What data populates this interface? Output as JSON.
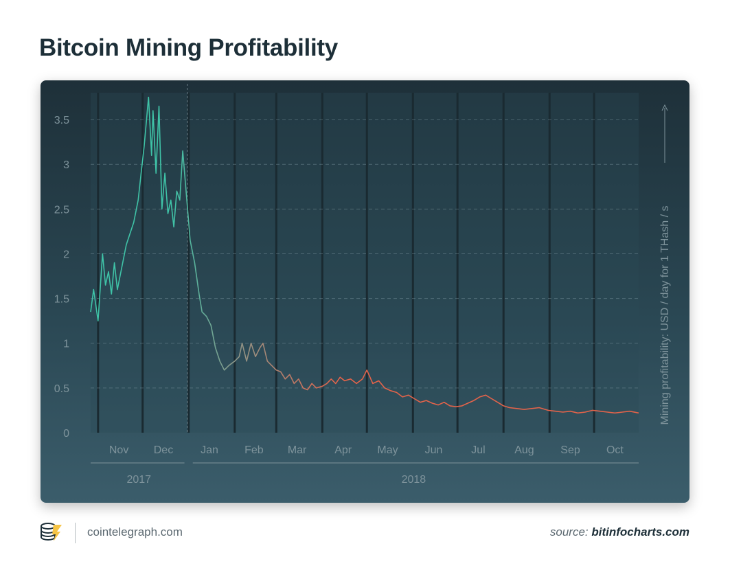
{
  "header": {
    "title": "Bitcoin Mining Profitability"
  },
  "footer": {
    "site": "cointelegraph.com",
    "source_prefix": "source: ",
    "source_name": "bitinfocharts.com"
  },
  "colors": {
    "line_start": "#3fc3a7",
    "line_mid": "#8a978a",
    "line_end": "#e4634a"
  },
  "chart_data": {
    "type": "line",
    "title": "Bitcoin Mining Profitability",
    "ylabel": "Mining profitability: USD / day for 1 THash / s",
    "ylim": [
      0,
      3.8
    ],
    "yticks": [
      0,
      0.5,
      1,
      1.5,
      2,
      2.5,
      3,
      3.5
    ],
    "ytick_labels": [
      "0",
      "0.5",
      "1",
      "1.5",
      "2",
      "2.5",
      "3",
      "3.5"
    ],
    "xlim": [
      "2017-10-27",
      "2018-10-31"
    ],
    "month_labels": [
      "Nov",
      "Dec",
      "Jan",
      "Feb",
      "Mar",
      "Apr",
      "May",
      "Jun",
      "Jul",
      "Aug",
      "Sep",
      "Oct"
    ],
    "year_labels": [
      "2017",
      "2018"
    ],
    "grid": true,
    "series": [
      {
        "x": [
          "2017-10-27",
          "2017-10-29",
          "2017-11-01",
          "2017-11-04",
          "2017-11-06",
          "2017-11-08",
          "2017-11-10",
          "2017-11-12",
          "2017-11-14",
          "2017-11-17",
          "2017-11-20",
          "2017-11-22",
          "2017-11-25",
          "2017-11-28",
          "2017-11-30",
          "2017-12-02",
          "2017-12-05",
          "2017-12-07",
          "2017-12-08",
          "2017-12-10",
          "2017-12-12",
          "2017-12-14",
          "2017-12-16",
          "2017-12-18",
          "2017-12-20",
          "2017-12-22",
          "2017-12-24",
          "2017-12-26",
          "2017-12-28",
          "2017-12-31",
          "2018-01-02",
          "2018-01-05",
          "2018-01-08",
          "2018-01-10",
          "2018-01-13",
          "2018-01-16",
          "2018-01-19",
          "2018-01-22",
          "2018-01-25",
          "2018-01-28",
          "2018-02-01",
          "2018-02-04",
          "2018-02-06",
          "2018-02-09",
          "2018-02-12",
          "2018-02-15",
          "2018-02-18",
          "2018-02-20",
          "2018-02-23",
          "2018-02-26",
          "2018-03-01",
          "2018-03-04",
          "2018-03-07",
          "2018-03-10",
          "2018-03-13",
          "2018-03-16",
          "2018-03-19",
          "2018-03-22",
          "2018-03-25",
          "2018-03-28",
          "2018-04-01",
          "2018-04-04",
          "2018-04-07",
          "2018-04-10",
          "2018-04-13",
          "2018-04-16",
          "2018-04-20",
          "2018-04-24",
          "2018-04-28",
          "2018-05-01",
          "2018-05-05",
          "2018-05-09",
          "2018-05-13",
          "2018-05-17",
          "2018-05-21",
          "2018-05-25",
          "2018-05-29",
          "2018-06-02",
          "2018-06-06",
          "2018-06-10",
          "2018-06-14",
          "2018-06-18",
          "2018-06-22",
          "2018-06-26",
          "2018-06-30",
          "2018-07-04",
          "2018-07-08",
          "2018-07-12",
          "2018-07-16",
          "2018-07-20",
          "2018-07-24",
          "2018-07-28",
          "2018-08-01",
          "2018-08-05",
          "2018-08-10",
          "2018-08-15",
          "2018-08-20",
          "2018-08-25",
          "2018-08-31",
          "2018-09-05",
          "2018-09-10",
          "2018-09-15",
          "2018-09-20",
          "2018-09-25",
          "2018-09-30",
          "2018-10-05",
          "2018-10-10",
          "2018-10-15",
          "2018-10-20",
          "2018-10-25",
          "2018-10-31"
        ],
        "y": [
          1.35,
          1.6,
          1.25,
          2.0,
          1.65,
          1.8,
          1.55,
          1.9,
          1.6,
          1.85,
          2.1,
          2.2,
          2.35,
          2.6,
          2.9,
          3.2,
          3.75,
          3.1,
          3.6,
          2.9,
          3.65,
          2.5,
          2.9,
          2.45,
          2.6,
          2.3,
          2.7,
          2.6,
          3.15,
          2.55,
          2.15,
          1.9,
          1.55,
          1.35,
          1.3,
          1.2,
          0.95,
          0.8,
          0.7,
          0.75,
          0.8,
          0.85,
          1.0,
          0.8,
          1.0,
          0.85,
          0.95,
          1.0,
          0.8,
          0.75,
          0.7,
          0.68,
          0.6,
          0.65,
          0.55,
          0.6,
          0.5,
          0.48,
          0.55,
          0.5,
          0.52,
          0.55,
          0.6,
          0.55,
          0.62,
          0.58,
          0.6,
          0.55,
          0.6,
          0.7,
          0.55,
          0.58,
          0.5,
          0.47,
          0.45,
          0.4,
          0.42,
          0.38,
          0.34,
          0.36,
          0.33,
          0.31,
          0.34,
          0.3,
          0.29,
          0.3,
          0.33,
          0.36,
          0.4,
          0.42,
          0.38,
          0.34,
          0.3,
          0.28,
          0.27,
          0.26,
          0.27,
          0.28,
          0.25,
          0.24,
          0.23,
          0.24,
          0.22,
          0.23,
          0.25,
          0.24,
          0.23,
          0.22,
          0.23,
          0.24,
          0.22
        ]
      }
    ]
  }
}
